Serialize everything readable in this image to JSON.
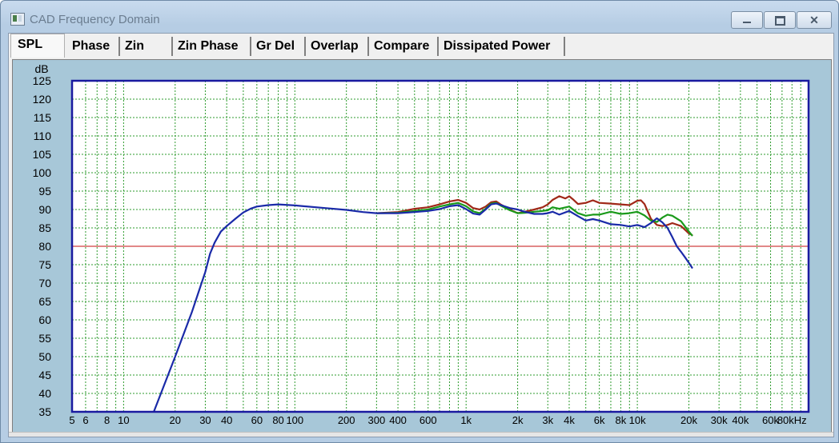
{
  "window": {
    "title": "CAD Frequency Domain"
  },
  "tabs": [
    {
      "label": "SPL",
      "active": true
    },
    {
      "label": "Phase"
    },
    {
      "label": "Zin"
    },
    {
      "label": "Zin Phase"
    },
    {
      "label": "Gr Del"
    },
    {
      "label": "Overlap"
    },
    {
      "label": "Compare"
    },
    {
      "label": "Dissipated Power"
    }
  ],
  "colors": {
    "plot_bg": "#ffffff",
    "frame": "#1a1aa0",
    "grid": "#2e9b2e",
    "reference": "#d04040",
    "series_red": "#a02818",
    "series_green": "#1a9a1a",
    "series_blue": "#1a2aa8",
    "panel": "#a7c7d8"
  },
  "chart_data": {
    "type": "line",
    "ylabel": "dB",
    "ylim": [
      35,
      125
    ],
    "yticks": [
      35,
      40,
      45,
      50,
      55,
      60,
      65,
      70,
      75,
      80,
      85,
      90,
      95,
      100,
      105,
      110,
      115,
      120,
      125
    ],
    "xscale": "log",
    "xlim": [
      5,
      100000
    ],
    "xtick_labels": [
      {
        "f": 5,
        "label": "5"
      },
      {
        "f": 6,
        "label": "6"
      },
      {
        "f": 8,
        "label": "8"
      },
      {
        "f": 10,
        "label": "10"
      },
      {
        "f": 20,
        "label": "20"
      },
      {
        "f": 30,
        "label": "30"
      },
      {
        "f": 40,
        "label": "40"
      },
      {
        "f": 60,
        "label": "60"
      },
      {
        "f": 80,
        "label": "80"
      },
      {
        "f": 100,
        "label": "100"
      },
      {
        "f": 200,
        "label": "200"
      },
      {
        "f": 300,
        "label": "300"
      },
      {
        "f": 400,
        "label": "400"
      },
      {
        "f": 600,
        "label": "600"
      },
      {
        "f": 1000,
        "label": "1k"
      },
      {
        "f": 2000,
        "label": "2k"
      },
      {
        "f": 3000,
        "label": "3k"
      },
      {
        "f": 4000,
        "label": "4k"
      },
      {
        "f": 6000,
        "label": "6k"
      },
      {
        "f": 8000,
        "label": "8k"
      },
      {
        "f": 10000,
        "label": "10k"
      },
      {
        "f": 20000,
        "label": "20k"
      },
      {
        "f": 30000,
        "label": "30k"
      },
      {
        "f": 40000,
        "label": "40k"
      },
      {
        "f": 60000,
        "label": "60k"
      },
      {
        "f": 80000,
        "label": "80kHz"
      }
    ],
    "grid": true,
    "reference_line": 80,
    "series": [
      {
        "color": "#a02818",
        "points": [
          [
            300,
            89
          ],
          [
            400,
            89.3
          ],
          [
            500,
            90.2
          ],
          [
            600,
            90.6
          ],
          [
            700,
            91.4
          ],
          [
            800,
            92.2
          ],
          [
            900,
            92.6
          ],
          [
            1000,
            91.8
          ],
          [
            1100,
            90.4
          ],
          [
            1200,
            90.0
          ],
          [
            1300,
            90.8
          ],
          [
            1400,
            92.0
          ],
          [
            1500,
            92.2
          ],
          [
            1600,
            91.3
          ],
          [
            1800,
            90.0
          ],
          [
            2000,
            89.0
          ],
          [
            2200,
            89.4
          ],
          [
            2500,
            90.0
          ],
          [
            2800,
            90.6
          ],
          [
            3000,
            91.4
          ],
          [
            3200,
            92.6
          ],
          [
            3500,
            93.6
          ],
          [
            3800,
            93.0
          ],
          [
            4000,
            93.6
          ],
          [
            4200,
            92.8
          ],
          [
            4500,
            91.5
          ],
          [
            5000,
            91.8
          ],
          [
            5500,
            92.5
          ],
          [
            6000,
            91.8
          ],
          [
            7000,
            91.6
          ],
          [
            8000,
            91.4
          ],
          [
            9000,
            91.2
          ],
          [
            10000,
            92.4
          ],
          [
            10500,
            92.5
          ],
          [
            11000,
            91.5
          ],
          [
            12000,
            87.5
          ],
          [
            13000,
            85.8
          ],
          [
            14000,
            85.5
          ],
          [
            15000,
            85.8
          ],
          [
            16000,
            86.3
          ],
          [
            18000,
            85.5
          ],
          [
            20000,
            83.5
          ],
          [
            21000,
            83.0
          ]
        ]
      },
      {
        "color": "#1a9a1a",
        "points": [
          [
            300,
            89
          ],
          [
            400,
            89.1
          ],
          [
            500,
            89.6
          ],
          [
            600,
            90.0
          ],
          [
            700,
            90.8
          ],
          [
            800,
            91.4
          ],
          [
            900,
            91.8
          ],
          [
            1000,
            90.9
          ],
          [
            1100,
            89.5
          ],
          [
            1200,
            89.0
          ],
          [
            1300,
            90.2
          ],
          [
            1400,
            91.6
          ],
          [
            1500,
            91.8
          ],
          [
            1600,
            91.0
          ],
          [
            1800,
            89.8
          ],
          [
            2000,
            89.0
          ],
          [
            2200,
            89.1
          ],
          [
            2500,
            89.4
          ],
          [
            2800,
            89.6
          ],
          [
            3000,
            89.8
          ],
          [
            3200,
            90.6
          ],
          [
            3500,
            90.2
          ],
          [
            4000,
            90.8
          ],
          [
            4500,
            89.0
          ],
          [
            5000,
            88.3
          ],
          [
            5500,
            88.6
          ],
          [
            6000,
            88.6
          ],
          [
            7000,
            89.4
          ],
          [
            8000,
            88.8
          ],
          [
            9000,
            89.0
          ],
          [
            10000,
            89.4
          ],
          [
            11000,
            88.4
          ],
          [
            12000,
            87.0
          ],
          [
            13000,
            86.6
          ],
          [
            14000,
            87.8
          ],
          [
            15000,
            88.6
          ],
          [
            16000,
            88.3
          ],
          [
            18000,
            86.8
          ],
          [
            20000,
            84.0
          ],
          [
            21000,
            82.8
          ]
        ]
      },
      {
        "color": "#1a2aa8",
        "points": [
          [
            15,
            35
          ],
          [
            20,
            50
          ],
          [
            25,
            62
          ],
          [
            30,
            73
          ],
          [
            32,
            78
          ],
          [
            34,
            81
          ],
          [
            37,
            84
          ],
          [
            40,
            85.5
          ],
          [
            45,
            87.5
          ],
          [
            50,
            89.2
          ],
          [
            55,
            90.2
          ],
          [
            60,
            90.8
          ],
          [
            70,
            91.2
          ],
          [
            80,
            91.4
          ],
          [
            100,
            91.1
          ],
          [
            150,
            90.4
          ],
          [
            200,
            89.9
          ],
          [
            250,
            89.3
          ],
          [
            300,
            89.0
          ],
          [
            400,
            89.0
          ],
          [
            500,
            89.3
          ],
          [
            600,
            89.6
          ],
          [
            700,
            90.1
          ],
          [
            800,
            90.9
          ],
          [
            900,
            91.2
          ],
          [
            1000,
            90.1
          ],
          [
            1100,
            88.9
          ],
          [
            1200,
            88.6
          ],
          [
            1300,
            90.0
          ],
          [
            1400,
            91.4
          ],
          [
            1500,
            91.6
          ],
          [
            1600,
            91.2
          ],
          [
            1800,
            90.4
          ],
          [
            2000,
            90.0
          ],
          [
            2200,
            89.4
          ],
          [
            2500,
            88.8
          ],
          [
            2800,
            88.8
          ],
          [
            3000,
            89.0
          ],
          [
            3200,
            89.4
          ],
          [
            3500,
            88.6
          ],
          [
            4000,
            89.6
          ],
          [
            4500,
            88.2
          ],
          [
            5000,
            87.0
          ],
          [
            5500,
            87.4
          ],
          [
            6000,
            87.0
          ],
          [
            7000,
            86.0
          ],
          [
            8000,
            85.8
          ],
          [
            9000,
            85.4
          ],
          [
            10000,
            85.8
          ],
          [
            11000,
            85.2
          ],
          [
            12000,
            86.3
          ],
          [
            13000,
            87.6
          ],
          [
            14000,
            86.5
          ],
          [
            15000,
            85.0
          ],
          [
            16000,
            82.5
          ],
          [
            17000,
            80.0
          ],
          [
            18000,
            78.5
          ],
          [
            19000,
            77.0
          ],
          [
            20000,
            75.5
          ],
          [
            21000,
            74.0
          ]
        ]
      }
    ]
  }
}
